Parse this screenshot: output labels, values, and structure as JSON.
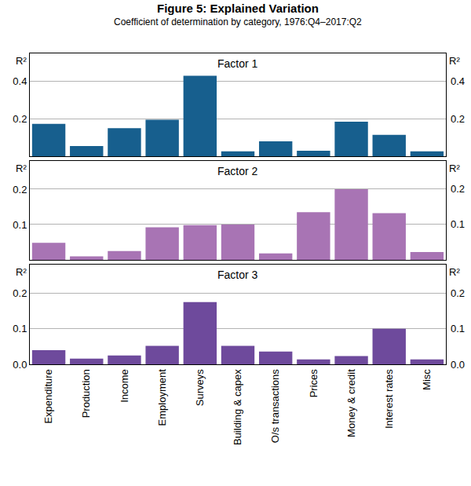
{
  "title": "Figure 5: Explained Variation",
  "subtitle": "Coefficient of determination by category, 1976:Q4–2017:Q2",
  "chart_data": [
    {
      "type": "bar",
      "title": "Factor 1",
      "ylabel": "R²",
      "categories": [
        "Expenditure",
        "Production",
        "Income",
        "Employment",
        "Surveys",
        "Building & capex",
        "O/s transactions",
        "Prices",
        "Money & credit",
        "Interest rates",
        "Misc"
      ],
      "values": [
        0.173,
        0.055,
        0.15,
        0.195,
        0.43,
        0.027,
        0.08,
        0.03,
        0.185,
        0.115,
        0.027
      ],
      "color": "#175f8e",
      "ylim": [
        0,
        0.55
      ],
      "yticks": [
        0.2,
        0.4
      ],
      "grid": true
    },
    {
      "type": "bar",
      "title": "Factor 2",
      "ylabel": "R²",
      "categories": [
        "Expenditure",
        "Production",
        "Income",
        "Employment",
        "Surveys",
        "Building & capex",
        "O/s transactions",
        "Prices",
        "Money & credit",
        "Interest rates",
        "Misc"
      ],
      "values": [
        0.048,
        0.01,
        0.025,
        0.092,
        0.098,
        0.1,
        0.018,
        0.135,
        0.2,
        0.132,
        0.022
      ],
      "color": "#a874b4",
      "ylim": [
        0,
        0.28
      ],
      "yticks": [
        0.1,
        0.2
      ],
      "grid": true
    },
    {
      "type": "bar",
      "title": "Factor 3",
      "ylabel": "R²",
      "categories": [
        "Expenditure",
        "Production",
        "Income",
        "Employment",
        "Surveys",
        "Building & capex",
        "O/s transactions",
        "Prices",
        "Money & credit",
        "Interest rates",
        "Misc"
      ],
      "values": [
        0.04,
        0.016,
        0.025,
        0.052,
        0.175,
        0.052,
        0.036,
        0.014,
        0.023,
        0.1,
        0.014
      ],
      "color": "#6e4a9c",
      "ylim": [
        0,
        0.28
      ],
      "yticks": [
        {
          "value": 0,
          "label": "0.0"
        },
        0.1,
        0.2
      ],
      "grid": true
    }
  ]
}
